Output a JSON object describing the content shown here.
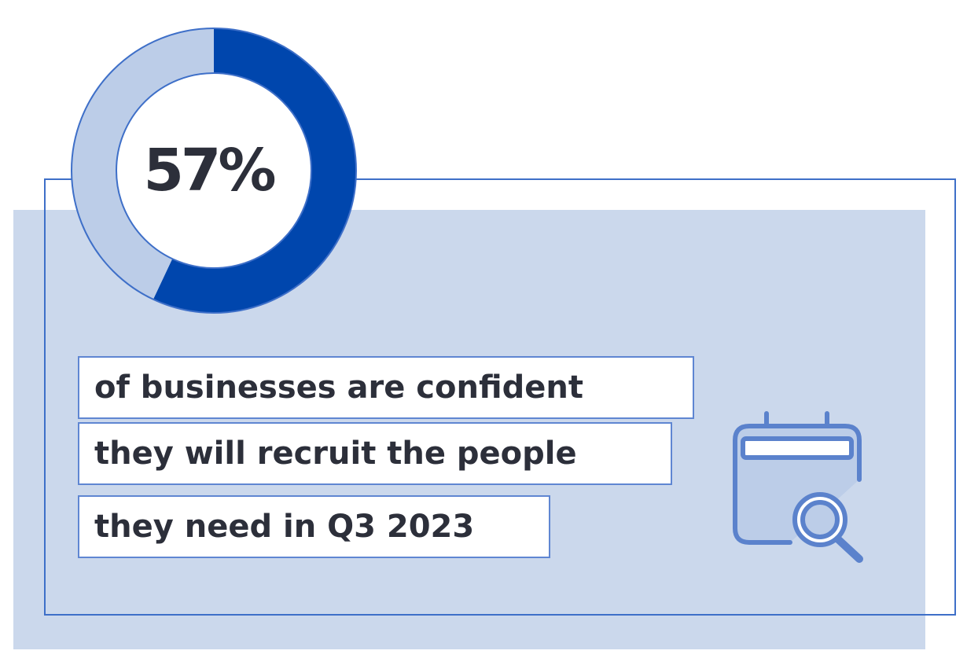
{
  "chart_data": {
    "type": "pie",
    "variant": "donut",
    "values": [
      57,
      43
    ],
    "center_label": "57%",
    "colors": [
      "#0046ad",
      "#bccde8"
    ]
  },
  "caption": {
    "lines": [
      "of businesses are confident",
      "they will recruit the people",
      "they need in Q3 2023"
    ]
  },
  "icons": {
    "calendar": "calendar-search-icon"
  },
  "colors": {
    "accent": "#0046ad",
    "light_accent": "#bccde8",
    "panel": "#cbd8ec",
    "frame": "#3e6fc8",
    "text": "#2c2f3a"
  }
}
